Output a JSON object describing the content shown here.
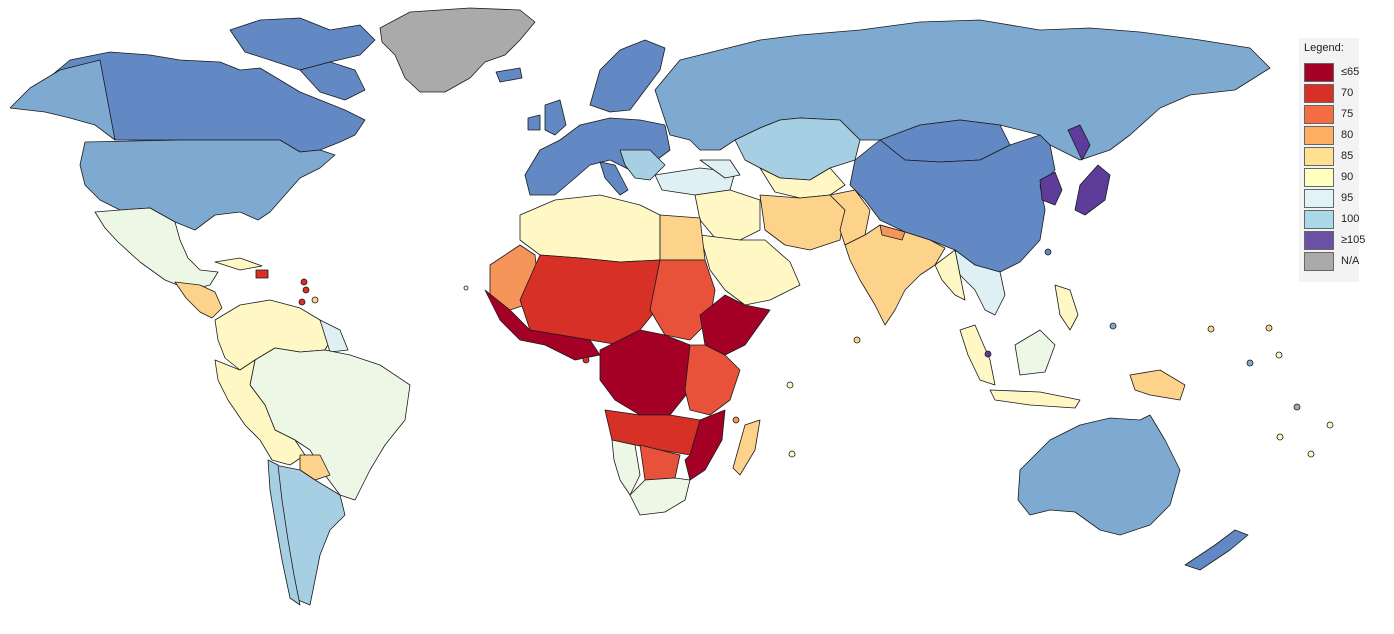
{
  "legend": {
    "title": "Legend:",
    "items": [
      {
        "label": "≤65",
        "color": "#a50026"
      },
      {
        "label": "70",
        "color": "#d73027"
      },
      {
        "label": "75",
        "color": "#f46d43"
      },
      {
        "label": "80",
        "color": "#fdae61"
      },
      {
        "label": "85",
        "color": "#fee090"
      },
      {
        "label": "90",
        "color": "#ffffbf"
      },
      {
        "label": "95",
        "color": "#e0f3f8"
      },
      {
        "label": "100",
        "color": "#abd9e9"
      },
      {
        "label": "≥105",
        "color": "#6a51a3"
      },
      {
        "label": "N/A",
        "color": "#aaaaaa"
      }
    ]
  },
  "colors": {
    "le65": "#a50026",
    "c70": "#d73027",
    "c75": "#e8523a",
    "c80": "#f6955a",
    "c85": "#fdd28a",
    "c90": "#fff8c4",
    "c95": "#edf7e6",
    "c95b": "#dff0f4",
    "c100a": "#a7cfe3",
    "c100b": "#7eaad2",
    "c100c": "#6289c3",
    "c105": "#5e3c99",
    "na": "#aaaaaa"
  }
}
